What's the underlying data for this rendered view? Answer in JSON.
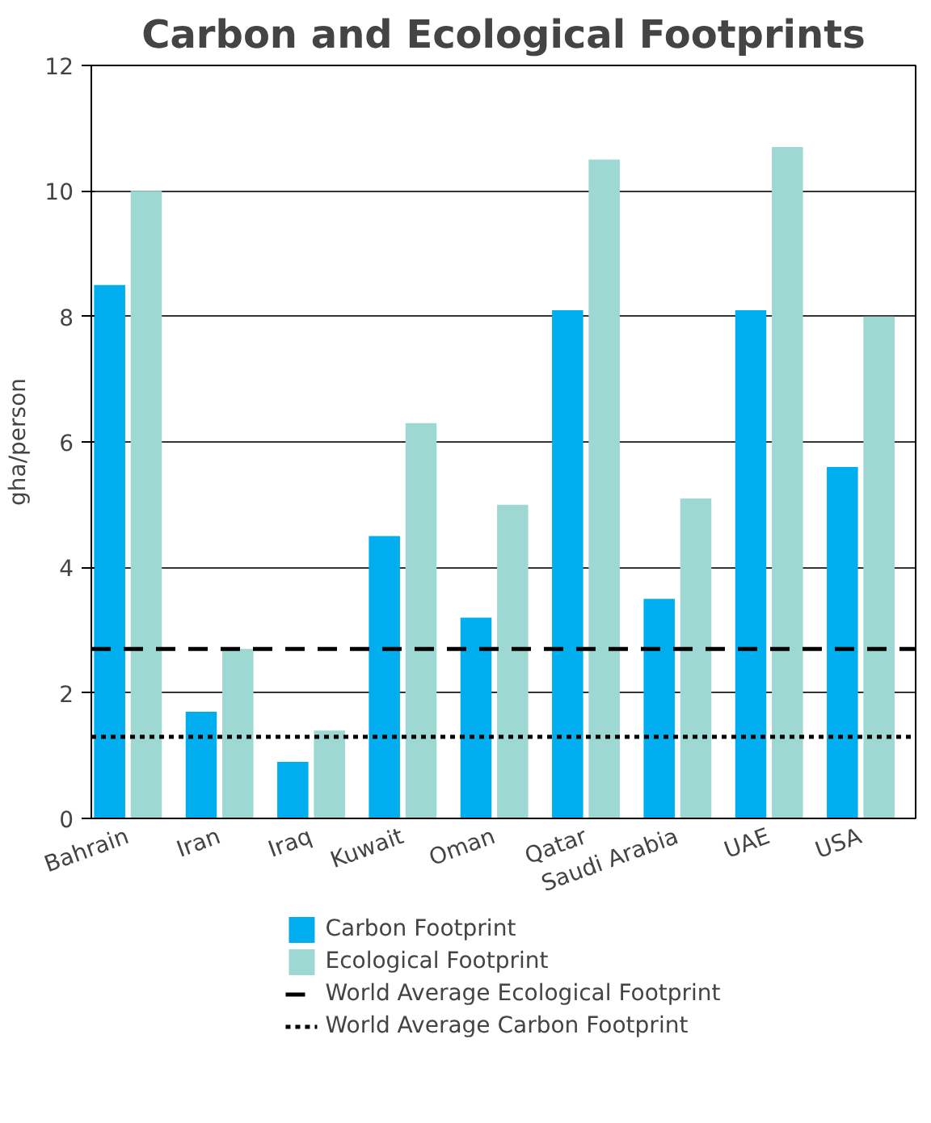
{
  "chart_data": {
    "type": "bar",
    "title": "Carbon and Ecological Footprints",
    "ylabel": "gha/person",
    "categories": [
      "Bahrain",
      "Iran",
      "Iraq",
      "Kuwait",
      "Oman",
      "Qatar",
      "Saudi Arabia",
      "UAE",
      "USA"
    ],
    "series": [
      {
        "name": "Carbon Footprint",
        "color": "#00aeef",
        "values": [
          8.5,
          1.7,
          0.9,
          4.5,
          3.2,
          8.1,
          3.5,
          8.1,
          5.6
        ]
      },
      {
        "name": "Ecological Footprint",
        "color": "#9ed8d2",
        "values": [
          10.0,
          2.7,
          1.4,
          6.3,
          5.0,
          10.5,
          5.1,
          10.7,
          8.0
        ]
      }
    ],
    "ylim": [
      0,
      12
    ],
    "yticks": [
      0,
      2,
      4,
      6,
      8,
      10,
      12
    ],
    "grid": "y",
    "legend": "bottom",
    "ref_lines": [
      {
        "axis": "y",
        "value": 2.7,
        "label": "World Average Ecological Footprint",
        "color": "#000000",
        "line_style": "dashed"
      },
      {
        "axis": "y",
        "value": 1.3,
        "label": "World Average Carbon Footprint",
        "color": "#000000",
        "line_style": "dotted"
      }
    ]
  }
}
